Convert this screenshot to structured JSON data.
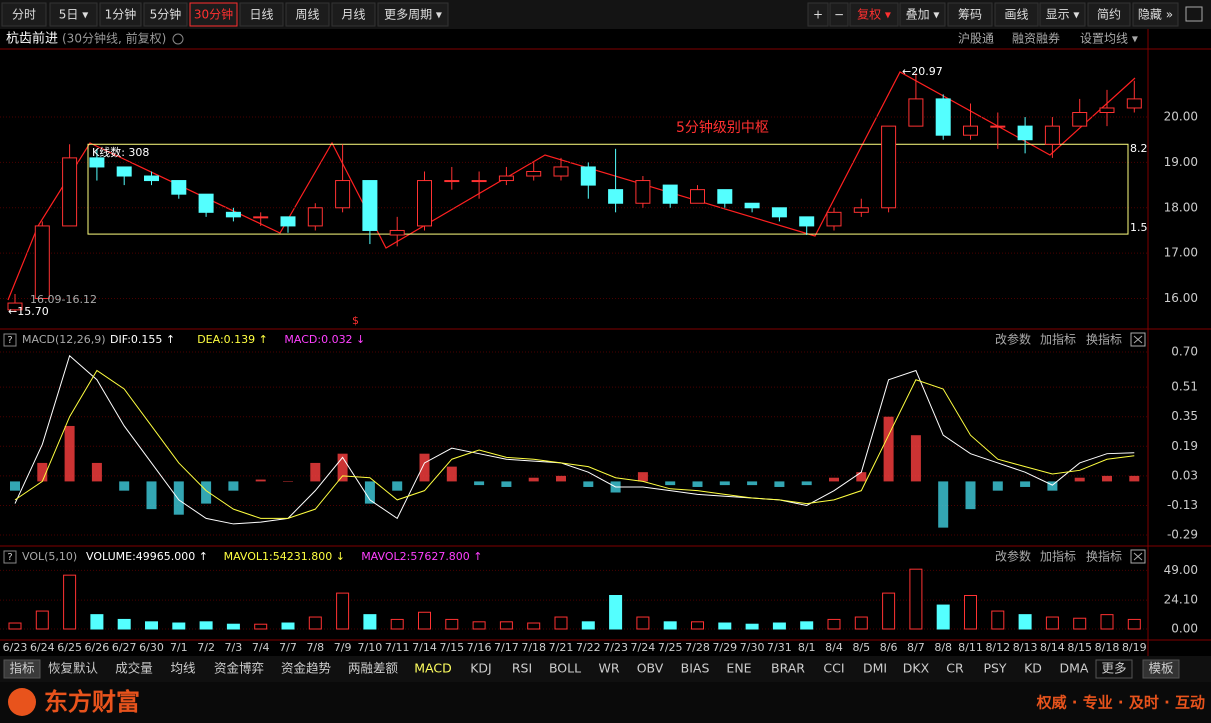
{
  "toolbar": {
    "left": [
      "分时",
      "5日 ▾",
      "1分钟",
      "5分钟",
      "30分钟",
      "日线",
      "周线",
      "月线",
      "更多周期 ▾"
    ],
    "right": [
      "+",
      "−",
      "复权 ▾",
      "叠加 ▾",
      "筹码",
      "画线",
      "显示 ▾",
      "简约",
      "隐藏 »"
    ]
  },
  "stock": {
    "name": "杭齿前进",
    "period": "(30分钟线, 前复权)",
    "links": [
      "沪股通",
      "融资融券",
      "设置均线 ▾"
    ]
  },
  "chart_data": [
    {
      "type": "candlestick",
      "open": [
        15.75,
        16.0,
        17.6,
        19.1,
        18.9,
        18.7,
        18.6,
        18.3,
        17.9,
        17.8,
        17.8,
        17.6,
        18.0,
        18.6,
        17.4,
        17.6,
        18.6,
        18.6,
        18.6,
        18.7,
        18.7,
        18.9,
        18.4,
        18.1,
        18.5,
        18.1,
        18.4,
        18.1,
        18.0,
        17.8,
        17.6,
        17.9,
        18.0,
        19.8,
        20.4,
        19.6,
        19.8,
        19.8,
        19.4,
        19.8,
        20.1,
        20.2
      ],
      "high": [
        16.1,
        17.7,
        19.4,
        19.3,
        18.9,
        18.8,
        18.6,
        18.3,
        18.0,
        17.9,
        17.8,
        18.1,
        19.4,
        18.6,
        17.8,
        18.8,
        18.9,
        18.8,
        18.9,
        19.0,
        19.1,
        19.0,
        19.3,
        18.7,
        18.5,
        18.5,
        18.4,
        18.1,
        18.0,
        17.8,
        18.0,
        18.2,
        19.8,
        20.97,
        20.5,
        20.3,
        20.1,
        20.0,
        20.0,
        20.4,
        20.6,
        20.8
      ],
      "low": [
        15.7,
        16.0,
        17.6,
        18.6,
        18.5,
        18.5,
        18.2,
        17.8,
        17.7,
        17.6,
        17.45,
        17.5,
        17.9,
        17.2,
        17.15,
        17.5,
        18.4,
        18.2,
        18.5,
        18.6,
        18.6,
        18.2,
        17.9,
        18.0,
        18.0,
        18.1,
        18.0,
        17.9,
        17.7,
        17.4,
        17.5,
        17.8,
        17.9,
        19.8,
        19.5,
        19.5,
        19.3,
        19.2,
        19.1,
        19.8,
        19.8,
        20.1
      ],
      "close": [
        15.9,
        17.6,
        19.1,
        18.9,
        18.7,
        18.6,
        18.3,
        17.9,
        17.8,
        17.8,
        17.6,
        18.0,
        18.6,
        17.5,
        17.5,
        18.6,
        18.6,
        18.6,
        18.7,
        18.8,
        18.9,
        18.5,
        18.1,
        18.6,
        18.1,
        18.4,
        18.1,
        18.0,
        17.8,
        17.6,
        17.9,
        18.0,
        19.8,
        20.4,
        19.6,
        19.8,
        19.8,
        19.5,
        19.8,
        20.1,
        20.2,
        20.4
      ],
      "up_color": "#ff3232",
      "down_color": "#54ffff",
      "box": [
        17.42,
        19.4
      ],
      "box_color": "#ffff80",
      "ylim": [
        15.35,
        21.5
      ],
      "yticks": [
        {
          "value": 16,
          "label": "16.00"
        },
        {
          "value": 17,
          "label": "17.00"
        },
        {
          "value": 18,
          "label": "18.00"
        },
        {
          "value": 19,
          "label": "19.00"
        },
        {
          "value": 20,
          "label": "20.00"
        }
      ],
      "annotations": [
        "←20.97",
        "←15.70",
        "16.09-16.12",
        "K线数: 308",
        "5分钟级别中枢",
        "8.2",
        "1.5",
        "$"
      ]
    },
    {
      "type": "macd",
      "header": "MACD(12,26,9)",
      "legend": [
        "DIF:0.155 ↑",
        "DEA:0.139 ↑",
        "MACD:0.032 ↓"
      ],
      "hist": [
        -0.05,
        0.1,
        0.3,
        0.1,
        -0.05,
        -0.15,
        -0.18,
        -0.12,
        -0.05,
        0.01,
        0.0,
        0.1,
        0.15,
        -0.12,
        -0.05,
        0.15,
        0.08,
        -0.02,
        -0.03,
        0.02,
        0.03,
        -0.03,
        -0.06,
        0.05,
        -0.02,
        -0.03,
        -0.02,
        -0.02,
        -0.03,
        -0.02,
        0.02,
        0.05,
        0.35,
        0.25,
        -0.25,
        -0.15,
        -0.05,
        -0.03,
        -0.05,
        0.02,
        0.03,
        0.03
      ],
      "dif": [
        -0.12,
        0.2,
        0.68,
        0.55,
        0.3,
        0.1,
        -0.1,
        -0.2,
        -0.23,
        -0.22,
        -0.2,
        -0.05,
        0.13,
        -0.1,
        -0.2,
        0.1,
        0.18,
        0.15,
        0.12,
        0.11,
        0.1,
        0.05,
        -0.03,
        -0.03,
        -0.05,
        -0.07,
        -0.08,
        -0.09,
        -0.1,
        -0.13,
        -0.05,
        0.05,
        0.55,
        0.6,
        0.25,
        0.15,
        0.1,
        0.05,
        -0.02,
        0.1,
        0.15,
        0.155
      ],
      "dea": [
        -0.1,
        0.0,
        0.35,
        0.6,
        0.5,
        0.3,
        0.1,
        -0.05,
        -0.15,
        -0.2,
        -0.2,
        -0.15,
        0.03,
        0.02,
        -0.1,
        -0.05,
        0.12,
        0.17,
        0.13,
        0.12,
        0.1,
        0.08,
        0.02,
        0.0,
        -0.04,
        -0.05,
        -0.07,
        -0.09,
        -0.1,
        -0.12,
        -0.1,
        -0.05,
        0.25,
        0.55,
        0.5,
        0.25,
        0.12,
        0.08,
        0.04,
        0.06,
        0.12,
        0.139
      ],
      "ylim": [
        -0.344,
        0.738
      ],
      "yticks": [
        {
          "value": 0.7,
          "label": "0.70"
        },
        0.51,
        0.35,
        0.19,
        0.03,
        -0.13,
        -0.29
      ]
    },
    {
      "type": "volume",
      "header": "VOL(5,10)",
      "legend": [
        "VOLUME:49965.000 ↑",
        "MAVOL1:54231.800 ↓",
        "MAVOL2:57627.800 ↑"
      ],
      "categories": [
        "6/23",
        "6/24",
        "6/25",
        "6/26",
        "6/27",
        "6/30",
        "7/1",
        "7/2",
        "7/3",
        "7/4",
        "7/7",
        "7/8",
        "7/9",
        "7/10",
        "7/11",
        "7/14",
        "7/15",
        "7/16",
        "7/17",
        "7/18",
        "7/21",
        "7/22",
        "7/23",
        "7/24",
        "7/25",
        "7/28",
        "7/29",
        "7/30",
        "7/31",
        "8/1",
        "8/4",
        "8/5",
        "8/6",
        "8/7",
        "8/8",
        "8/11",
        "8/12",
        "8/13",
        "8/14",
        "8/15",
        "8/18",
        "8/19"
      ],
      "values": [
        5,
        15,
        45,
        12,
        8,
        6,
        5,
        6,
        4,
        4,
        5,
        10,
        30,
        12,
        8,
        14,
        8,
        6,
        6,
        5,
        10,
        6,
        28,
        10,
        6,
        6,
        5,
        4,
        5,
        6,
        8,
        10,
        30,
        50,
        20,
        28,
        15,
        12,
        10,
        9,
        12,
        8
      ],
      "ylim": [
        0,
        56
      ],
      "yticks": [
        {
          "value": 0,
          "label": "0.00"
        },
        {
          "value": 24.1,
          "label": "24.10"
        },
        {
          "value": 49,
          "label": "49.00"
        }
      ]
    }
  ],
  "panel_controls": [
    "改参数",
    "加指标",
    "换指标"
  ],
  "help": "?",
  "tabs": [
    "指标",
    "恢复默认",
    "成交量",
    "均线",
    "资金博弈",
    "资金趋势",
    "两融差额",
    "MACD",
    "KDJ",
    "RSI",
    "BOLL",
    "WR",
    "OBV",
    "BIAS",
    "ENE",
    "BRAR",
    "CCI",
    "DMI",
    "DKX",
    "CR",
    "PSY",
    "KD",
    "DMA",
    "更多",
    "模板"
  ],
  "brand": "东方财富",
  "slogan": "权威 · 专业 · 及时 · 互动"
}
